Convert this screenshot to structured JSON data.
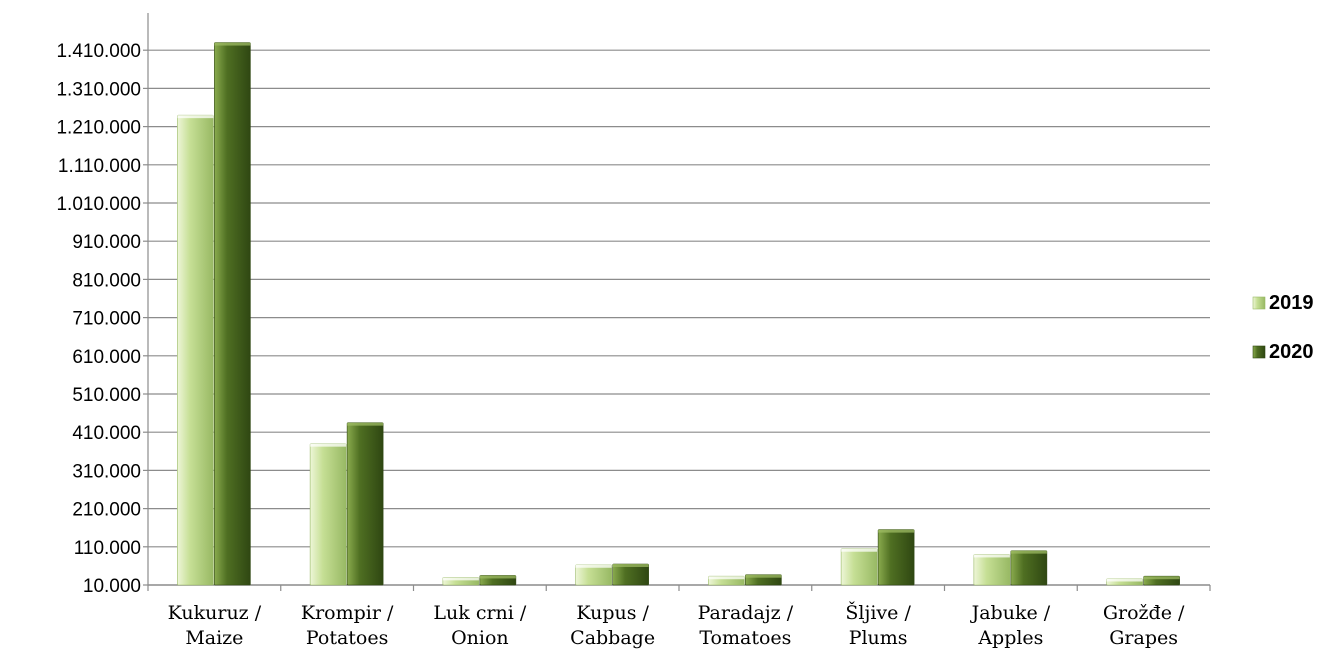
{
  "chart_data": {
    "type": "bar",
    "title": "",
    "xlabel": "",
    "ylabel": "",
    "categories": [
      [
        "Kukuruz /",
        "Maize"
      ],
      [
        "Krompir /",
        "Potatoes"
      ],
      [
        "Luk crni /",
        "Onion"
      ],
      [
        "Kupus /",
        "Cabbage"
      ],
      [
        "Paradajz /",
        "Tomatoes"
      ],
      [
        "Šljive /",
        "Plums"
      ],
      [
        "Jabuke /",
        "Apples"
      ],
      [
        "Grožđe /",
        "Grapes"
      ]
    ],
    "series": [
      {
        "name": "2019",
        "values": [
          1240000,
          380000,
          30000,
          63000,
          33000,
          105000,
          90000,
          27000
        ]
      },
      {
        "name": "2020",
        "values": [
          1430000,
          435000,
          35000,
          65000,
          37000,
          155000,
          100000,
          33000
        ]
      }
    ],
    "yticks": [
      "10.000",
      "110.000",
      "210.000",
      "310.000",
      "410.000",
      "510.000",
      "610.000",
      "710.000",
      "810.000",
      "910.000",
      "1.010.000",
      "1.110.000",
      "1.210.000",
      "1.310.000",
      "1.410.000"
    ],
    "ylim": [
      10000,
      1480000
    ],
    "grid": true,
    "legend_position": "right",
    "colors": {
      "2019": {
        "light": "#eef6d8",
        "mid": "#c6df95",
        "dark": "#98b964"
      },
      "2020": {
        "light": "#8aab4e",
        "mid": "#4f6f22",
        "dark": "#2f4712"
      },
      "grid": "#8c8c8c",
      "axis": "#8c8c8c"
    }
  }
}
